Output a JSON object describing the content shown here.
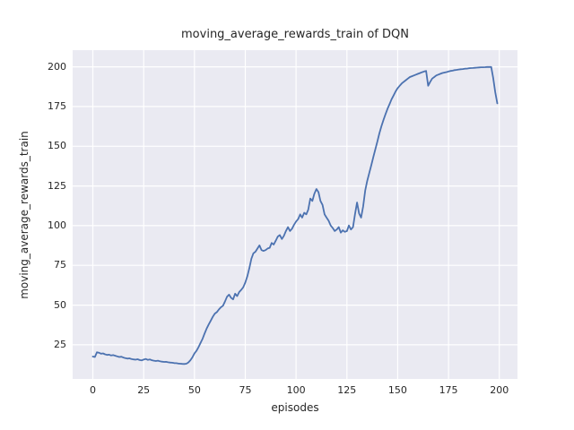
{
  "chart_data": {
    "type": "line",
    "title": "moving_average_rewards_train of DQN",
    "xlabel": "episodes",
    "ylabel": "moving_average_rewards_train",
    "series_name": "moving_average_rewards_train",
    "xticks": [
      0,
      25,
      50,
      75,
      100,
      125,
      150,
      175,
      200
    ],
    "yticks": [
      25,
      50,
      75,
      100,
      125,
      150,
      175,
      200
    ],
    "xlim": [
      -9.95,
      208.95
    ],
    "ylim": [
      3.5,
      210.5
    ],
    "grid": true,
    "legend": false,
    "line_color": "#4c72b0",
    "plot_bg": "#eaeaf2",
    "grid_color": "#ffffff",
    "text_color": "#262626",
    "figure_bg": "#ffffff",
    "points": [
      [
        0,
        17.6
      ],
      [
        1,
        17.3
      ],
      [
        2,
        20.3
      ],
      [
        3,
        20.0
      ],
      [
        4,
        19.4
      ],
      [
        5,
        19.6
      ],
      [
        6,
        19.0
      ],
      [
        7,
        18.6
      ],
      [
        8,
        18.8
      ],
      [
        9,
        18.3
      ],
      [
        10,
        18.5
      ],
      [
        11,
        18.1
      ],
      [
        12,
        17.7
      ],
      [
        13,
        17.3
      ],
      [
        14,
        17.5
      ],
      [
        15,
        17.0
      ],
      [
        16,
        16.6
      ],
      [
        17,
        16.3
      ],
      [
        18,
        16.5
      ],
      [
        19,
        16.0
      ],
      [
        20,
        15.8
      ],
      [
        21,
        15.6
      ],
      [
        22,
        15.9
      ],
      [
        23,
        15.4
      ],
      [
        24,
        15.2
      ],
      [
        25,
        15.7
      ],
      [
        26,
        16.1
      ],
      [
        27,
        15.5
      ],
      [
        28,
        15.8
      ],
      [
        29,
        15.3
      ],
      [
        30,
        15.0
      ],
      [
        31,
        14.8
      ],
      [
        32,
        15.0
      ],
      [
        33,
        14.6
      ],
      [
        34,
        14.4
      ],
      [
        35,
        14.2
      ],
      [
        36,
        14.3
      ],
      [
        37,
        14.0
      ],
      [
        38,
        13.8
      ],
      [
        39,
        13.7
      ],
      [
        40,
        13.5
      ],
      [
        41,
        13.4
      ],
      [
        42,
        13.2
      ],
      [
        43,
        13.1
      ],
      [
        44,
        13.0
      ],
      [
        45,
        12.9
      ],
      [
        46,
        13.1
      ],
      [
        47,
        13.9
      ],
      [
        48,
        15.3
      ],
      [
        49,
        17.2
      ],
      [
        50,
        19.6
      ],
      [
        51,
        21.2
      ],
      [
        52,
        23.6
      ],
      [
        53,
        26.2
      ],
      [
        54,
        28.8
      ],
      [
        55,
        32.2
      ],
      [
        56,
        35.2
      ],
      [
        57,
        37.8
      ],
      [
        58,
        40.2
      ],
      [
        59,
        42.6
      ],
      [
        60,
        44.6
      ],
      [
        61,
        45.6
      ],
      [
        62,
        47.2
      ],
      [
        63,
        48.6
      ],
      [
        64,
        49.6
      ],
      [
        65,
        52.2
      ],
      [
        66,
        55.2
      ],
      [
        67,
        56.6
      ],
      [
        68,
        54.6
      ],
      [
        69,
        53.6
      ],
      [
        70,
        57.2
      ],
      [
        71,
        55.6
      ],
      [
        72,
        58.2
      ],
      [
        73,
        59.6
      ],
      [
        74,
        61.2
      ],
      [
        75,
        64.2
      ],
      [
        76,
        68.2
      ],
      [
        77,
        73.2
      ],
      [
        78,
        79.2
      ],
      [
        79,
        82.6
      ],
      [
        80,
        83.6
      ],
      [
        81,
        85.6
      ],
      [
        82,
        87.6
      ],
      [
        83,
        84.6
      ],
      [
        84,
        84.1
      ],
      [
        85,
        84.6
      ],
      [
        86,
        85.6
      ],
      [
        87,
        86.1
      ],
      [
        88,
        89.1
      ],
      [
        89,
        88.1
      ],
      [
        90,
        90.6
      ],
      [
        91,
        93.1
      ],
      [
        92,
        94.1
      ],
      [
        93,
        91.6
      ],
      [
        94,
        93.6
      ],
      [
        95,
        96.6
      ],
      [
        96,
        99.1
      ],
      [
        97,
        96.6
      ],
      [
        98,
        98.1
      ],
      [
        99,
        100.6
      ],
      [
        100,
        102.6
      ],
      [
        101,
        104.1
      ],
      [
        102,
        107.1
      ],
      [
        103,
        105.1
      ],
      [
        104,
        108.1
      ],
      [
        105,
        107.1
      ],
      [
        106,
        110.1
      ],
      [
        107,
        117.1
      ],
      [
        108,
        115.6
      ],
      [
        109,
        120.1
      ],
      [
        110,
        123.1
      ],
      [
        111,
        121.1
      ],
      [
        112,
        115.6
      ],
      [
        113,
        113.1
      ],
      [
        114,
        107.1
      ],
      [
        115,
        105.1
      ],
      [
        116,
        103.1
      ],
      [
        117,
        100.1
      ],
      [
        118,
        98.6
      ],
      [
        119,
        96.6
      ],
      [
        120,
        97.6
      ],
      [
        121,
        99.1
      ],
      [
        122,
        95.6
      ],
      [
        123,
        97.1
      ],
      [
        124,
        96.1
      ],
      [
        125,
        96.6
      ],
      [
        126,
        100.1
      ],
      [
        127,
        97.6
      ],
      [
        128,
        99.1
      ],
      [
        129,
        107.1
      ],
      [
        130,
        114.6
      ],
      [
        131,
        107.6
      ],
      [
        132,
        105.1
      ],
      [
        133,
        112.1
      ],
      [
        134,
        122.1
      ],
      [
        135,
        128.1
      ],
      [
        136,
        133.1
      ],
      [
        137,
        138.1
      ],
      [
        138,
        143.1
      ],
      [
        139,
        148.1
      ],
      [
        140,
        153.1
      ],
      [
        141,
        158.1
      ],
      [
        142,
        162.6
      ],
      [
        143,
        166.6
      ],
      [
        144,
        170.1
      ],
      [
        145,
        173.6
      ],
      [
        146,
        176.6
      ],
      [
        147,
        179.6
      ],
      [
        148,
        182.1
      ],
      [
        149,
        184.6
      ],
      [
        150,
        186.6
      ],
      [
        151,
        188.1
      ],
      [
        152,
        189.6
      ],
      [
        153,
        190.6
      ],
      [
        154,
        191.6
      ],
      [
        155,
        192.6
      ],
      [
        156,
        193.6
      ],
      [
        157,
        194.1
      ],
      [
        158,
        194.6
      ],
      [
        159,
        195.1
      ],
      [
        160,
        195.6
      ],
      [
        161,
        196.1
      ],
      [
        162,
        196.6
      ],
      [
        163,
        197.1
      ],
      [
        164,
        197.4
      ],
      [
        165,
        188.1
      ],
      [
        166,
        190.6
      ],
      [
        167,
        192.6
      ],
      [
        168,
        193.6
      ],
      [
        169,
        194.6
      ],
      [
        170,
        195.1
      ],
      [
        171,
        195.6
      ],
      [
        172,
        196.1
      ],
      [
        173,
        196.4
      ],
      [
        174,
        196.7
      ],
      [
        175,
        197.1
      ],
      [
        176,
        197.4
      ],
      [
        177,
        197.6
      ],
      [
        178,
        197.9
      ],
      [
        179,
        198.1
      ],
      [
        180,
        198.3
      ],
      [
        181,
        198.5
      ],
      [
        182,
        198.6
      ],
      [
        183,
        198.8
      ],
      [
        184,
        198.9
      ],
      [
        185,
        199.1
      ],
      [
        186,
        199.2
      ],
      [
        187,
        199.3
      ],
      [
        188,
        199.4
      ],
      [
        189,
        199.5
      ],
      [
        190,
        199.6
      ],
      [
        191,
        199.7
      ],
      [
        192,
        199.7
      ],
      [
        193,
        199.8
      ],
      [
        194,
        199.9
      ],
      [
        195,
        199.9
      ],
      [
        196,
        199.9
      ],
      [
        197,
        193.0
      ],
      [
        198,
        184.0
      ],
      [
        199,
        177.0
      ]
    ]
  }
}
